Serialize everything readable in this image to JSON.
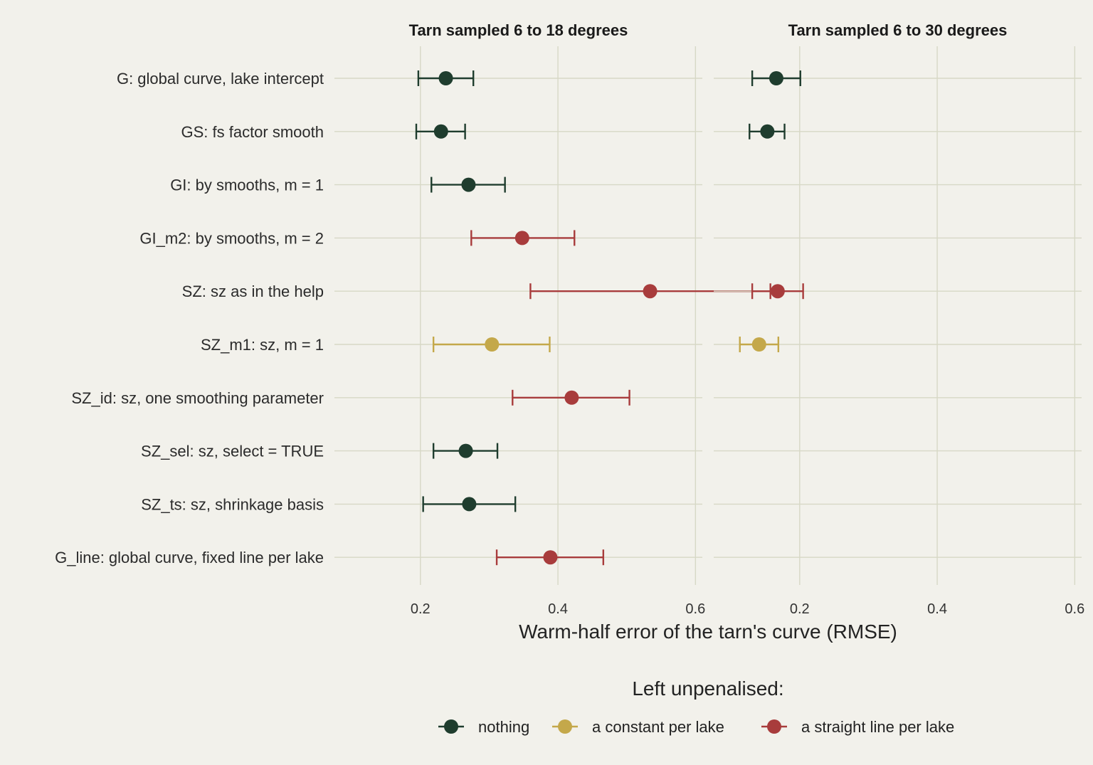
{
  "chart_data": {
    "type": "dot-errorbar",
    "xlabel": "Warm-half error of the tarn's curve (RMSE)",
    "xticks": [
      0.2,
      0.4,
      0.6
    ],
    "xlim": [
      0.075,
      0.61
    ],
    "grid": true,
    "legend_placement": "bottom",
    "legend": {
      "title": "Left unpenalised:",
      "entries": [
        {
          "key": "nothing",
          "label": "nothing",
          "color": "#1f3d2e"
        },
        {
          "key": "constant",
          "label": "a constant per lake",
          "color": "#c4a84a"
        },
        {
          "key": "line",
          "label": "a straight line per lake",
          "color": "#a83c3c"
        }
      ]
    },
    "models": [
      "G: global curve, lake intercept",
      "GS: fs factor smooth",
      "GI: by smooths, m = 1",
      "GI_m2: by smooths, m = 2",
      "SZ: sz as in the help",
      "SZ_m1: sz, m = 1",
      "SZ_id: sz, one smoothing parameter",
      "SZ_sel: sz, select = TRUE",
      "SZ_ts: sz, shrinkage basis",
      "G_line: global curve, fixed line per lake"
    ],
    "panels": [
      {
        "title": "Tarn sampled 6 to 18 degrees",
        "points": [
          {
            "model": 0,
            "group": "nothing",
            "value": 0.237,
            "lo": 0.197,
            "hi": 0.277
          },
          {
            "model": 1,
            "group": "nothing",
            "value": 0.23,
            "lo": 0.194,
            "hi": 0.265
          },
          {
            "model": 2,
            "group": "nothing",
            "value": 0.27,
            "lo": 0.216,
            "hi": 0.323
          },
          {
            "model": 3,
            "group": "line",
            "value": 0.348,
            "lo": 0.274,
            "hi": 0.424
          },
          {
            "model": 4,
            "group": "line",
            "value": 0.534,
            "lo": 0.36,
            "hi": 0.709
          },
          {
            "model": 5,
            "group": "constant",
            "value": 0.304,
            "lo": 0.219,
            "hi": 0.388
          },
          {
            "model": 6,
            "group": "line",
            "value": 0.42,
            "lo": 0.334,
            "hi": 0.504
          },
          {
            "model": 7,
            "group": "nothing",
            "value": 0.266,
            "lo": 0.219,
            "hi": 0.312
          },
          {
            "model": 8,
            "group": "nothing",
            "value": 0.271,
            "lo": 0.204,
            "hi": 0.338
          },
          {
            "model": 9,
            "group": "line",
            "value": 0.389,
            "lo": 0.311,
            "hi": 0.466
          }
        ]
      },
      {
        "title": "Tarn sampled 6 to 30 degrees",
        "points": [
          {
            "model": 0,
            "group": "nothing",
            "value": 0.166,
            "lo": 0.131,
            "hi": 0.201
          },
          {
            "model": 1,
            "group": "nothing",
            "value": 0.153,
            "lo": 0.127,
            "hi": 0.178
          },
          {
            "model": 4,
            "group": "line",
            "value": 0.168,
            "lo": 0.131,
            "hi": 0.205
          },
          {
            "model": 5,
            "group": "constant",
            "value": 0.141,
            "lo": 0.113,
            "hi": 0.169
          }
        ]
      }
    ]
  }
}
